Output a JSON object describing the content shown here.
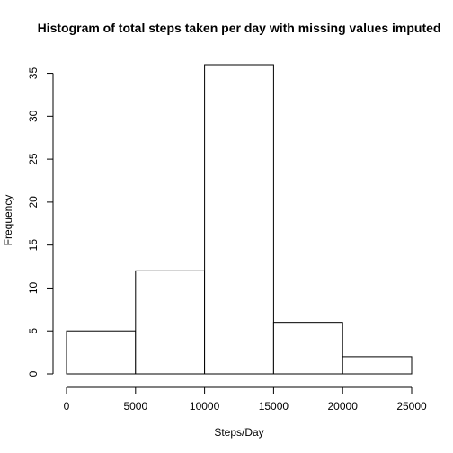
{
  "chart_data": {
    "type": "bar",
    "title": "Histogram of total steps taken per day with missing values imputed",
    "xlabel": "Steps/Day",
    "ylabel": "Frequency",
    "bins": [
      {
        "start": 0,
        "end": 5000,
        "count": 5
      },
      {
        "start": 5000,
        "end": 10000,
        "count": 12
      },
      {
        "start": 10000,
        "end": 15000,
        "count": 36
      },
      {
        "start": 15000,
        "end": 20000,
        "count": 6
      },
      {
        "start": 20000,
        "end": 25000,
        "count": 2
      }
    ],
    "xlim": [
      0,
      25000
    ],
    "ylim": [
      0,
      36
    ],
    "x_ticks": [
      0,
      5000,
      10000,
      15000,
      20000,
      25000
    ],
    "y_ticks": [
      0,
      5,
      10,
      15,
      20,
      25,
      30,
      35
    ],
    "grid": false,
    "legend": "none",
    "colors": {
      "bar_fill": "#ffffff",
      "bar_stroke": "#000000"
    }
  }
}
